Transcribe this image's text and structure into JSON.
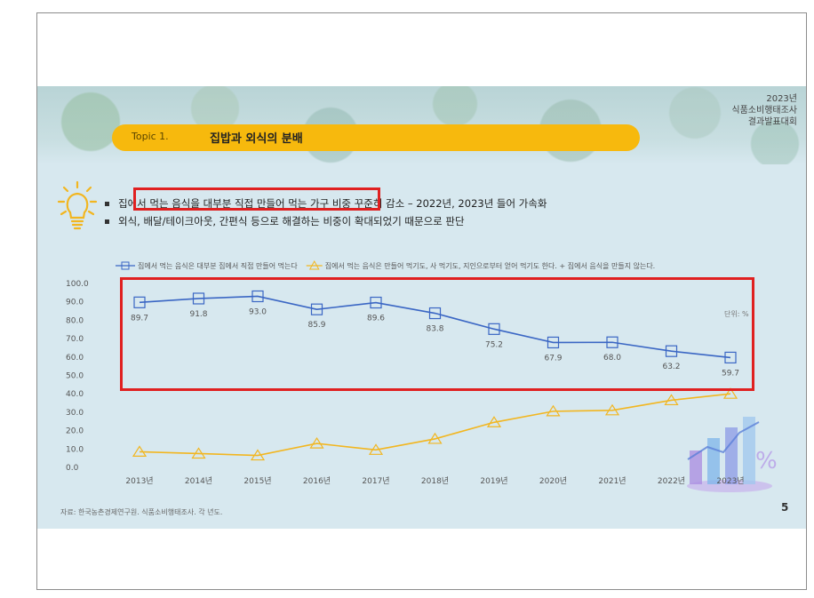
{
  "report": {
    "year": "2023년",
    "line2": "식품소비행태조사",
    "line3": "결과발표대회"
  },
  "topic": {
    "label": "Topic 1.",
    "title": "집밥과 외식의 분배"
  },
  "bullets": [
    "집에서 먹는 음식을 대부분 직접 만들어 먹는 가구 비중 꾸준히 감소 – 2022년, 2023년 들어 가속화",
    "외식, 배달/테이크아웃, 간편식 등으로 해결하는 비중이 확대되었기 때문으로 판단"
  ],
  "source": "자료: 한국농촌경제연구원. 식품소비행태조사. 각 년도.",
  "page_number": "5",
  "colors": {
    "accent": "#f7b90d",
    "series1": "#3a66c4",
    "series2": "#f2b620",
    "highlight": "#e02020",
    "background": "#d7e8ef"
  },
  "chart_data": {
    "type": "line",
    "categories": [
      "2013년",
      "2014년",
      "2015년",
      "2016년",
      "2017년",
      "2018년",
      "2019년",
      "2020년",
      "2021년",
      "2022년",
      "2023년"
    ],
    "ylim": [
      0,
      100
    ],
    "yticks": [
      "0.0",
      "10.0",
      "20.0",
      "30.0",
      "40.0",
      "50.0",
      "60.0",
      "70.0",
      "80.0",
      "90.0",
      "100.0"
    ],
    "unit_label": "단위: %",
    "series": [
      {
        "name": "집에서 먹는 음식은 대부분 집에서 직접 만들어 먹는다",
        "values": [
          89.7,
          91.8,
          93.0,
          85.9,
          89.6,
          83.8,
          75.2,
          67.9,
          68.0,
          63.2,
          59.7
        ],
        "labels": [
          "89.7",
          "91.8",
          "93.0",
          "85.9",
          "89.6",
          "83.8",
          "75.2",
          "67.9",
          "68.0",
          "63.2",
          "59.7"
        ],
        "marker": "square",
        "color": "#3a66c4"
      },
      {
        "name": "집에서 먹는 음식은 만들어 먹기도, 사 먹기도, 지인으로부터 얻어 먹기도 한다. + 집에서 음식을 만들지 않는다.",
        "values": [
          8.5,
          7.5,
          6.5,
          13.0,
          9.5,
          15.5,
          24.5,
          30.5,
          31.0,
          36.5,
          40.0
        ],
        "marker": "triangle",
        "color": "#f2b620"
      }
    ],
    "grid": false,
    "legend_position": "top"
  }
}
